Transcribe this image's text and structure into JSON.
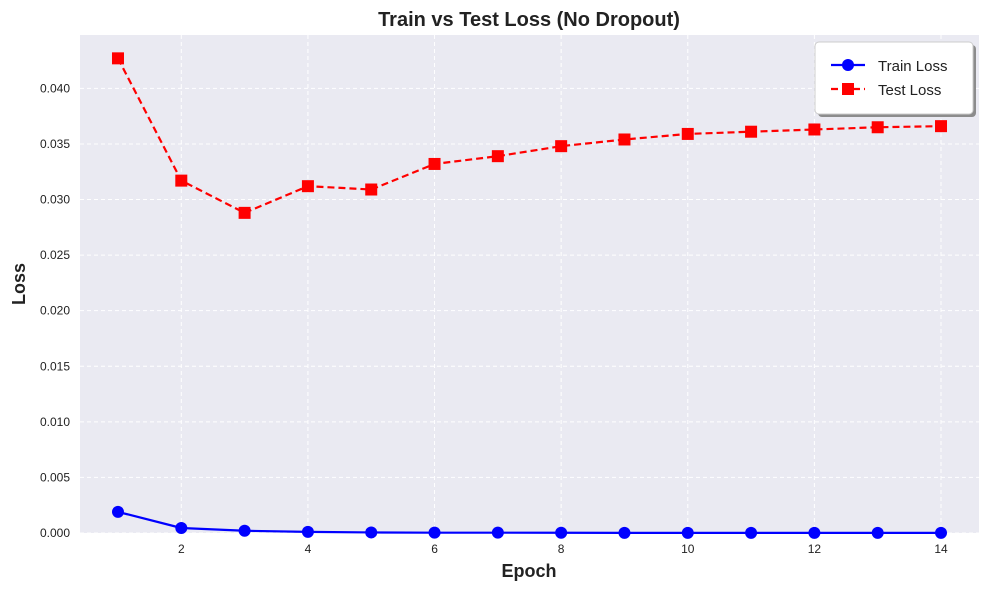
{
  "chart_data": {
    "type": "line",
    "title": "Train vs Test Loss (No Dropout)",
    "xlabel": "Epoch",
    "ylabel": "Loss",
    "x": [
      1,
      2,
      3,
      4,
      5,
      6,
      7,
      8,
      9,
      10,
      11,
      12,
      13,
      14
    ],
    "xlim": [
      0.4,
      14.6
    ],
    "ylim": [
      0,
      0.0448
    ],
    "xticks": [
      2,
      4,
      6,
      8,
      10,
      12,
      14
    ],
    "xtick_labels": [
      "2",
      "4",
      "6",
      "8",
      "10",
      "12",
      "14"
    ],
    "yticks": [
      0,
      0.005,
      0.01,
      0.015,
      0.02,
      0.025,
      0.03,
      0.035,
      0.04
    ],
    "ytick_labels": [
      "0.000",
      "0.005",
      "0.010",
      "0.015",
      "0.020",
      "0.025",
      "0.030",
      "0.035",
      "0.040"
    ],
    "grid": true,
    "legend_position": "top-right",
    "series": [
      {
        "name": "Train Loss",
        "values": [
          0.0019,
          0.00045,
          0.0002,
          0.0001,
          5e-05,
          3e-05,
          3e-05,
          2e-05,
          1e-05,
          1e-05,
          1e-05,
          1e-05,
          1e-05,
          1e-05
        ],
        "color": "#0000ff",
        "line_style": "solid",
        "marker": "circle"
      },
      {
        "name": "Test Loss",
        "values": [
          0.0427,
          0.0317,
          0.0288,
          0.0312,
          0.0309,
          0.0332,
          0.0339,
          0.0348,
          0.0354,
          0.0359,
          0.0361,
          0.0363,
          0.0365,
          0.0366
        ],
        "color": "#ff0000",
        "line_style": "dashed",
        "marker": "square"
      }
    ],
    "colors": {
      "plot_background": "#eaeaf2",
      "grid": "#ffffff",
      "text": "#222222"
    }
  }
}
